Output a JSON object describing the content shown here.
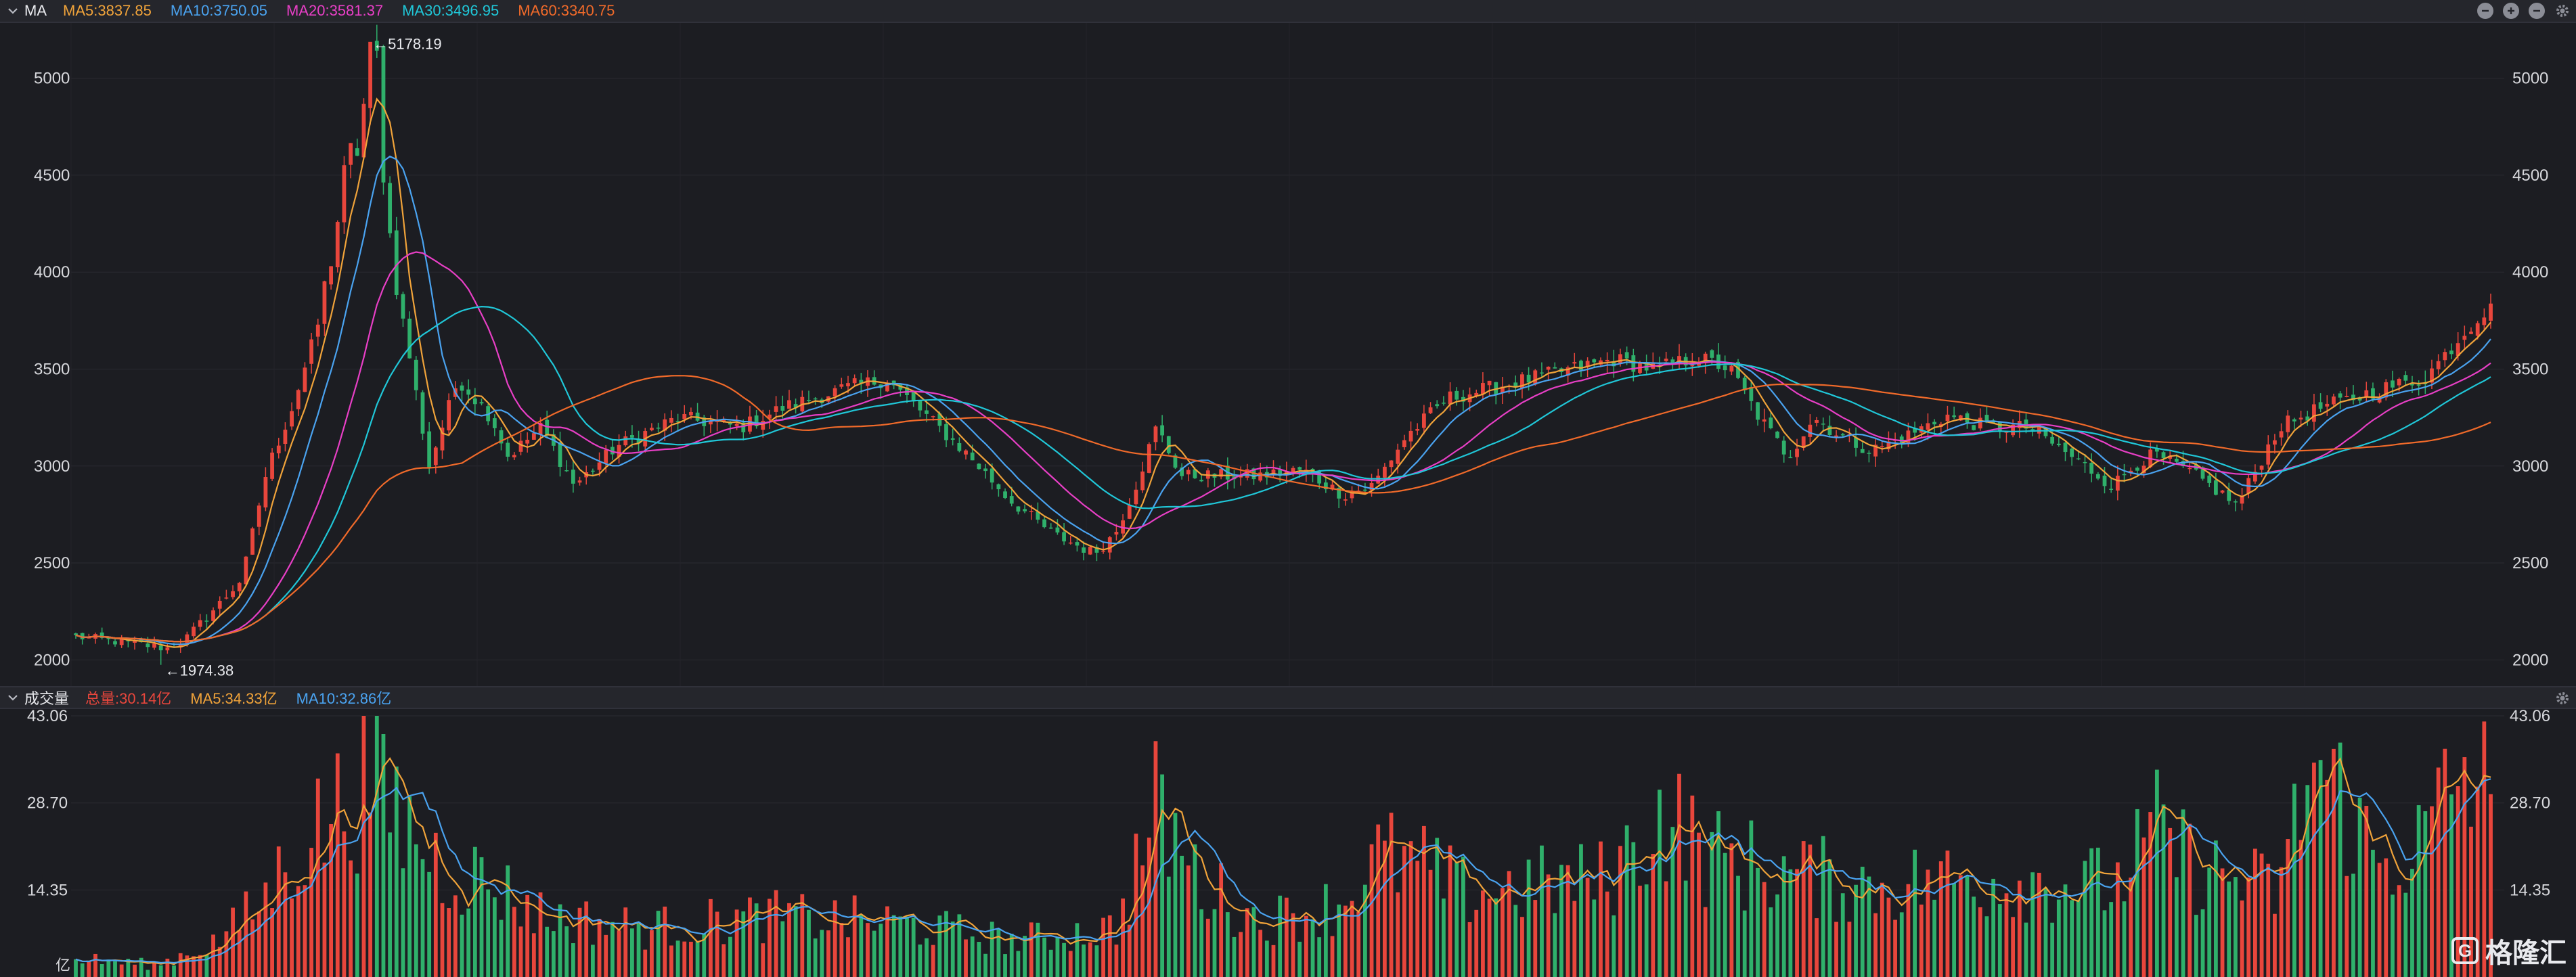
{
  "price_header": {
    "label": "MA",
    "ma": [
      {
        "text": "MA5:3837.85",
        "color": "#f0a33a"
      },
      {
        "text": "MA10:3750.05",
        "color": "#4aa3f0"
      },
      {
        "text": "MA20:3581.37",
        "color": "#e83fc6"
      },
      {
        "text": "MA30:3496.95",
        "color": "#20c7d8"
      },
      {
        "text": "MA60:3340.75",
        "color": "#f06a2a"
      }
    ],
    "buttons": [
      "minus-circle-icon",
      "plus-circle-icon",
      "minus-circle-icon",
      "gear-icon"
    ]
  },
  "volume_header": {
    "label": "成交量",
    "items": [
      {
        "text": "总量:30.14亿",
        "color": "#e8463c"
      },
      {
        "text": "MA5:34.33亿",
        "color": "#f0a33a"
      },
      {
        "text": "MA10:32.86亿",
        "color": "#4aa3f0"
      }
    ]
  },
  "price_axis": {
    "min": 1900,
    "max": 5250,
    "ticks": [
      "5000",
      "4500",
      "4000",
      "3500",
      "3000",
      "2500",
      "2000"
    ]
  },
  "volume_axis": {
    "max": 43.06,
    "ticks": [
      "43.06",
      "28.70",
      "14.35"
    ],
    "unit": "亿"
  },
  "annotations": {
    "high": "←5178.19",
    "low": "←1974.38"
  },
  "colors": {
    "up": "#e8463c",
    "down": "#2fb06b",
    "background": "#1c1d22",
    "grid": "#2a2b31"
  },
  "watermark": "格隆汇",
  "chart_data": {
    "type": "line",
    "title": "",
    "subtitle": "",
    "n_bars": 370,
    "price_anchors": [
      [
        0,
        2120
      ],
      [
        14,
        2085
      ],
      [
        22,
        2060
      ],
      [
        26,
        2100
      ],
      [
        35,
        2300
      ],
      [
        40,
        2420
      ],
      [
        46,
        2980
      ],
      [
        52,
        3300
      ],
      [
        58,
        3700
      ],
      [
        62,
        4200
      ],
      [
        68,
        4700
      ],
      [
        72,
        5178
      ],
      [
        76,
        4050
      ],
      [
        80,
        3600
      ],
      [
        85,
        3000
      ],
      [
        92,
        3450
      ],
      [
        100,
        3250
      ],
      [
        104,
        3050
      ],
      [
        112,
        3200
      ],
      [
        120,
        2900
      ],
      [
        130,
        3100
      ],
      [
        145,
        3250
      ],
      [
        160,
        3200
      ],
      [
        170,
        3300
      ],
      [
        185,
        3400
      ],
      [
        195,
        3450
      ],
      [
        205,
        3250
      ],
      [
        215,
        3050
      ],
      [
        225,
        2820
      ],
      [
        235,
        2650
      ],
      [
        245,
        2550
      ],
      [
        250,
        2650
      ],
      [
        255,
        2900
      ],
      [
        260,
        3200
      ],
      [
        266,
        2950
      ],
      [
        275,
        2950
      ],
      [
        285,
        2950
      ],
      [
        295,
        2980
      ],
      [
        305,
        2850
      ],
      [
        312,
        2900
      ],
      [
        320,
        3150
      ],
      [
        330,
        3350
      ],
      [
        340,
        3400
      ],
      [
        350,
        3450
      ],
      [
        360,
        3500
      ],
      [
        370,
        3550
      ],
      [
        380,
        3500
      ],
      [
        390,
        3560
      ],
      [
        398,
        3500
      ],
      [
        405,
        3250
      ],
      [
        412,
        3050
      ],
      [
        418,
        3250
      ],
      [
        425,
        3150
      ],
      [
        432,
        3080
      ],
      [
        440,
        3150
      ],
      [
        450,
        3260
      ],
      [
        460,
        3200
      ],
      [
        470,
        3200
      ],
      [
        480,
        3050
      ],
      [
        490,
        2900
      ],
      [
        495,
        3000
      ],
      [
        500,
        3060
      ],
      [
        510,
        2950
      ],
      [
        520,
        2800
      ],
      [
        525,
        3000
      ],
      [
        530,
        3200
      ],
      [
        540,
        3300
      ],
      [
        548,
        3350
      ],
      [
        555,
        3400
      ],
      [
        565,
        3450
      ],
      [
        575,
        3700
      ],
      [
        581,
        3838
      ]
    ],
    "ma_series": [
      {
        "name": "MA5",
        "period": 5,
        "value": 3837.85
      },
      {
        "name": "MA10",
        "period": 10,
        "value": 3750.05
      },
      {
        "name": "MA20",
        "period": 20,
        "value": 3581.37
      },
      {
        "name": "MA30",
        "period": 30,
        "value": 3496.95
      },
      {
        "name": "MA60",
        "period": 60,
        "value": 3340.75
      }
    ],
    "volume_anchors": [
      [
        0,
        3
      ],
      [
        20,
        2
      ],
      [
        35,
        6
      ],
      [
        45,
        12
      ],
      [
        55,
        22
      ],
      [
        65,
        28
      ],
      [
        72,
        33
      ],
      [
        80,
        26
      ],
      [
        90,
        18
      ],
      [
        100,
        16
      ],
      [
        115,
        10
      ],
      [
        140,
        8
      ],
      [
        170,
        10
      ],
      [
        200,
        9
      ],
      [
        230,
        6
      ],
      [
        255,
        8
      ],
      [
        265,
        28
      ],
      [
        275,
        16
      ],
      [
        290,
        9
      ],
      [
        310,
        12
      ],
      [
        320,
        20
      ],
      [
        330,
        18
      ],
      [
        340,
        14
      ],
      [
        355,
        15
      ],
      [
        375,
        16
      ],
      [
        390,
        27
      ],
      [
        400,
        20
      ],
      [
        420,
        17
      ],
      [
        440,
        15
      ],
      [
        460,
        16
      ],
      [
        480,
        16
      ],
      [
        500,
        15
      ],
      [
        510,
        24
      ],
      [
        520,
        18
      ],
      [
        540,
        14
      ],
      [
        548,
        35
      ],
      [
        555,
        30
      ],
      [
        565,
        18
      ],
      [
        575,
        22
      ],
      [
        585,
        34
      ],
      [
        592,
        30
      ]
    ],
    "volume": {
      "total": 30.14,
      "ma5": 34.33,
      "ma10": 32.86,
      "unit": "亿"
    }
  }
}
